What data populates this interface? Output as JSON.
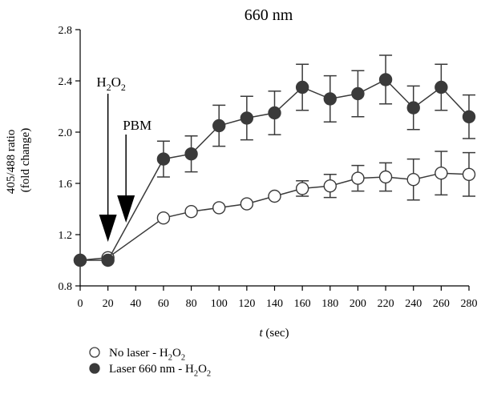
{
  "chart_data": {
    "type": "line",
    "title": "660 nm",
    "xlabel": {
      "italic": "t",
      "rest": " (sec)"
    },
    "ylabel": [
      "405/488 ratio",
      "(fold change)"
    ],
    "xlim": [
      0,
      280
    ],
    "ylim": [
      0.8,
      2.8
    ],
    "x_ticks": [
      0,
      20,
      40,
      60,
      80,
      100,
      120,
      140,
      160,
      180,
      200,
      220,
      240,
      260,
      280
    ],
    "y_ticks": [
      0.8,
      1.2,
      1.6,
      2.0,
      2.4,
      2.8
    ],
    "x": [
      0,
      20,
      60,
      80,
      100,
      120,
      140,
      160,
      180,
      200,
      220,
      240,
      260,
      280
    ],
    "series": [
      {
        "name": {
          "main": "No laser - H",
          "sub": "2",
          "main2": "O",
          "sub2": "2"
        },
        "marker": "open-circle",
        "values": [
          1.0,
          1.02,
          1.33,
          1.38,
          1.41,
          1.44,
          1.5,
          1.56,
          1.58,
          1.64,
          1.65,
          1.63,
          1.68,
          1.67
        ],
        "errors": [
          0,
          0,
          0,
          0,
          0,
          0,
          0,
          0.06,
          0.09,
          0.1,
          0.11,
          0.16,
          0.17,
          0.17
        ]
      },
      {
        "name": {
          "main": "Laser 660 nm - H",
          "sub": "2",
          "main2": "O",
          "sub2": "2"
        },
        "marker": "filled-circle",
        "values": [
          1.0,
          1.0,
          1.79,
          1.83,
          2.05,
          2.11,
          2.15,
          2.35,
          2.26,
          2.3,
          2.41,
          2.19,
          2.35,
          2.12
        ],
        "errors": [
          0,
          0,
          0.14,
          0.14,
          0.16,
          0.17,
          0.17,
          0.18,
          0.18,
          0.18,
          0.19,
          0.17,
          0.18,
          0.17
        ]
      }
    ],
    "annotations": [
      {
        "label": {
          "main": "H",
          "sub": "2",
          "main2": "O",
          "sub2": "2"
        },
        "x": 20
      },
      {
        "label": {
          "main": "PBM"
        },
        "x": 33
      }
    ],
    "grid": false,
    "legend": "bottom-left"
  },
  "colors": {
    "line": "#3a3a3a",
    "filled_marker": "#3a3a3a",
    "open_marker": "#ffffff",
    "axis": "#000000"
  }
}
